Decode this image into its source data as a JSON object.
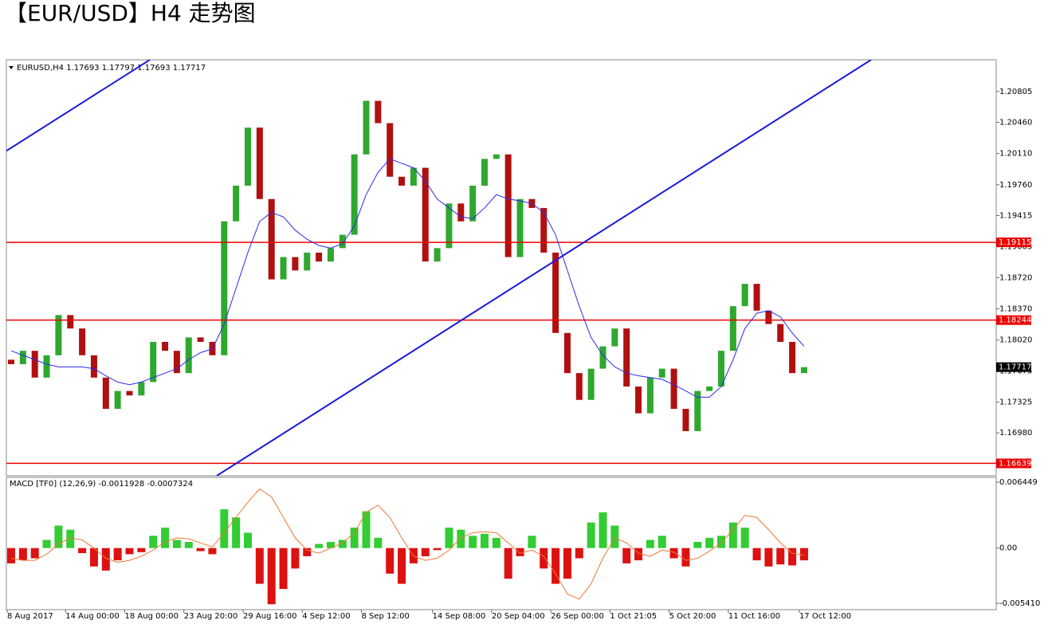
{
  "title": "【EUR/USD】H4 走势图",
  "chart_data": {
    "type": "candlestick",
    "symbol_header": "EURUSD,H4  1.17693 1.17797 1.17693 1.17717",
    "first_open": 1.178,
    "categories": [
      "8 Aug 2017",
      null,
      null,
      null,
      null,
      "14 Aug 00:00",
      null,
      null,
      null,
      null,
      "18 Aug 00:00",
      null,
      null,
      null,
      null,
      "23 Aug 20:00",
      null,
      null,
      null,
      null,
      "29 Aug 16:00",
      null,
      null,
      null,
      null,
      "4 Sep 12:00",
      null,
      null,
      null,
      null,
      "8 Sep 12:00",
      null,
      null,
      null,
      null,
      null,
      "14 Sep 08:00",
      null,
      null,
      null,
      null,
      "20 Sep 04:00",
      null,
      null,
      null,
      null,
      "26 Sep 00:00",
      null,
      null,
      null,
      null,
      "1 Oct 21:05",
      null,
      null,
      null,
      null,
      "5 Oct 20:00",
      null,
      null,
      null,
      null,
      "11 Oct 16:00",
      null,
      null,
      null,
      null,
      null,
      "17 Oct 12:00"
    ],
    "series": [
      {
        "name": "close",
        "up_color": "#2ea82e",
        "down_color": "#b01010",
        "values": [
          1.1775,
          1.179,
          1.176,
          1.1785,
          1.183,
          1.1815,
          1.1785,
          1.176,
          1.1725,
          1.1745,
          1.174,
          1.1755,
          1.18,
          1.179,
          1.1765,
          1.1805,
          1.18,
          1.1785,
          1.1935,
          1.1975,
          1.204,
          1.196,
          1.187,
          1.1895,
          1.188,
          1.19,
          1.189,
          1.1905,
          1.192,
          1.201,
          1.207,
          1.2045,
          1.1985,
          1.1975,
          1.1995,
          1.189,
          1.1905,
          1.1955,
          1.1935,
          1.1975,
          1.2005,
          1.201,
          1.1895,
          1.196,
          1.195,
          1.19,
          1.181,
          1.1765,
          1.1735,
          1.177,
          1.1795,
          1.1815,
          1.175,
          1.172,
          1.176,
          1.177,
          1.1725,
          1.17,
          1.1745,
          1.175,
          1.179,
          1.184,
          1.1865,
          1.1835,
          1.182,
          1.18,
          1.1765,
          1.17717
        ]
      },
      {
        "name": "ma",
        "color": "#2a2aee",
        "values": [
          1.179,
          1.1785,
          1.178,
          1.1775,
          1.1772,
          1.1772,
          1.1772,
          1.177,
          1.1762,
          1.1755,
          1.1752,
          1.1755,
          1.176,
          1.1765,
          1.177,
          1.178,
          1.1788,
          1.1792,
          1.182,
          1.186,
          1.19,
          1.1935,
          1.1945,
          1.194,
          1.1925,
          1.1915,
          1.1908,
          1.1905,
          1.191,
          1.193,
          1.1965,
          1.199,
          1.2005,
          1.2,
          1.1995,
          1.198,
          1.196,
          1.195,
          1.194,
          1.1938,
          1.195,
          1.1965,
          1.196,
          1.1958,
          1.1955,
          1.1945,
          1.192,
          1.188,
          1.184,
          1.1805,
          1.1785,
          1.1772,
          1.1765,
          1.1762,
          1.176,
          1.1758,
          1.1752,
          1.1745,
          1.1738,
          1.1738,
          1.175,
          1.178,
          1.1815,
          1.1832,
          1.1835,
          1.1828,
          1.181,
          1.1795
        ]
      }
    ],
    "ylim": [
      1.165,
      1.2116
    ],
    "yticks": [
      1.20805,
      {
        "value": 1.2046,
        "label": "1.20460"
      },
      {
        "value": 1.2011,
        "label": "1.20110"
      },
      {
        "value": 1.1976,
        "label": "1.19760"
      },
      1.19415,
      1.19065,
      {
        "value": 1.1872,
        "label": "1.18720"
      },
      {
        "value": 1.1837,
        "label": "1.18370"
      },
      {
        "value": 1.1802,
        "label": "1.18020"
      },
      1.17675,
      1.17325,
      {
        "value": 1.1698,
        "label": "1.16980"
      }
    ],
    "levels": [
      1.19115,
      1.18244,
      1.16639
    ],
    "level_color": "#ee0000",
    "current_price": 1.17717,
    "trendlines": [
      {
        "start": [
          -0.4,
          1.2014
        ],
        "end": [
          11.72,
          1.2116
        ]
      },
      {
        "start": [
          17.37,
          1.165
        ],
        "end": [
          72.66,
          1.2116
        ]
      }
    ],
    "trendline_color": "#1a1adc",
    "macd": {
      "header": "MACD [TF0] (12,26,9) -0.0011928 -0.0007324",
      "histogram": [
        -0.0015,
        -0.0012,
        -0.001,
        0.0008,
        0.0022,
        0.0018,
        -0.0005,
        -0.0018,
        -0.0022,
        -0.0012,
        -0.0006,
        -0.0004,
        0.0012,
        0.002,
        0.0008,
        0.0006,
        -0.0003,
        -0.0006,
        0.0038,
        0.003,
        0.0015,
        -0.0035,
        -0.0055,
        -0.004,
        -0.002,
        -0.0008,
        0.0004,
        0.0006,
        0.0008,
        0.002,
        0.0036,
        0.001,
        -0.0025,
        -0.0035,
        -0.0015,
        -0.0008,
        -0.0002,
        0.002,
        0.0018,
        0.0012,
        0.0014,
        0.001,
        -0.003,
        -0.0008,
        0.0012,
        -0.002,
        -0.0035,
        -0.003,
        -0.001,
        0.0025,
        0.0035,
        0.0022,
        -0.0015,
        -0.0012,
        0.0008,
        0.0012,
        -0.001,
        -0.0018,
        0.0006,
        0.001,
        0.0012,
        0.0025,
        0.002,
        -0.0012,
        -0.0018,
        -0.0016,
        -0.0017,
        -0.0012
      ],
      "signal": [
        -0.001,
        -0.0012,
        -0.0012,
        -0.0006,
        0.0004,
        0.001,
        0.0008,
        0,
        -0.001,
        -0.0014,
        -0.0012,
        -0.0008,
        -0.0002,
        0.0006,
        0.001,
        0.0009,
        0.0005,
        0.0001,
        0.0015,
        0.003,
        0.0045,
        0.0058,
        0.005,
        0.003,
        0.001,
        -0.0002,
        -0.0005,
        0,
        0.0005,
        0.0015,
        0.0035,
        0.0042,
        0.003,
        0.001,
        -0.0008,
        -0.0012,
        -0.001,
        -0.0002,
        0.001,
        0.0015,
        0.0016,
        0.0015,
        0.0005,
        -0.0005,
        -0.0002,
        -0.0008,
        -0.0025,
        -0.0045,
        -0.005,
        -0.0035,
        -0.001,
        0.001,
        0.0005,
        -0.0005,
        -0.0008,
        -0.0002,
        -0.0004,
        -0.0012,
        -0.001,
        -0.0003,
        0.0005,
        0.0018,
        0.0032,
        0.003,
        0.0018,
        0.0005,
        -0.0005,
        -0.0007
      ],
      "up_color": "#33cc33",
      "down_color": "#dd1111",
      "signal_color": "#ee7733",
      "ylim": [
        -0.00603,
        0.00692
      ],
      "yticks": [
        0.006449,
        {
          "value": 0,
          "label": "0.00"
        },
        {
          "value": -0.00541,
          "label": "-0.005410"
        }
      ]
    }
  }
}
